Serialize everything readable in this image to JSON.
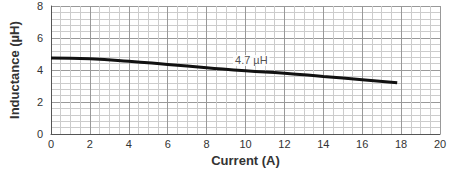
{
  "chart_data": {
    "type": "line",
    "x_label": "Current (A)",
    "y_label": "Inductance (µH)",
    "x": [
      0,
      2,
      4,
      6,
      8,
      10,
      12,
      14,
      16,
      17.8
    ],
    "values": [
      4.75,
      4.7,
      4.55,
      4.35,
      4.15,
      3.95,
      3.8,
      3.6,
      3.4,
      3.2
    ],
    "color": "#111111",
    "xlim": [
      0,
      20
    ],
    "xticks": [
      0,
      2,
      4,
      6,
      8,
      10,
      12,
      14,
      16,
      18,
      20
    ],
    "ylim": [
      0,
      8
    ],
    "yticks": [
      0,
      2,
      4,
      6,
      8
    ],
    "annotations": [
      {
        "text": "4.7 µH",
        "x": 10.3,
        "y": 4.6
      }
    ],
    "grid": true
  }
}
